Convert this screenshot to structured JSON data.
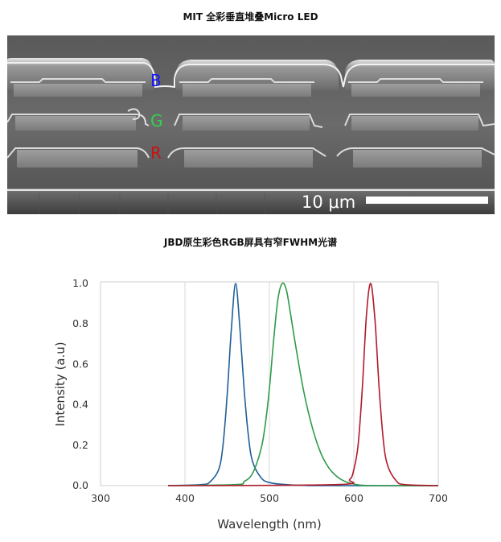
{
  "figure1": {
    "title": "MIT 全彩垂直堆叠Micro LED",
    "labels": {
      "b": "B",
      "g": "G",
      "r": "R"
    },
    "label_colors": {
      "b": "#1a1aff",
      "g": "#33d04d",
      "r": "#cc1111"
    },
    "scale_bar_text": "10 μm"
  },
  "figure2": {
    "title": "JBD原生彩色RGB屏具有窄FWHM光谱"
  },
  "chart_data": {
    "type": "line",
    "xlabel": "Wavelength (nm)",
    "ylabel": "Intensity (a.u)",
    "xlim": [
      300,
      700
    ],
    "ylim": [
      0,
      1.0
    ],
    "x_ticks": [
      "300",
      "400",
      "500",
      "600",
      "700"
    ],
    "y_ticks": [
      "0.0",
      "0.2",
      "0.4",
      "0.6",
      "0.8",
      "1.0"
    ],
    "grid": true,
    "legend": "none",
    "series": [
      {
        "color": "#1f5f96",
        "x": [
          380,
          420,
          430,
          440,
          445,
          450,
          455,
          460,
          465,
          470,
          475,
          480,
          490,
          500,
          520,
          560,
          700
        ],
        "y": [
          0,
          0.005,
          0.02,
          0.08,
          0.2,
          0.45,
          0.78,
          1.0,
          0.78,
          0.48,
          0.25,
          0.12,
          0.04,
          0.015,
          0.005,
          0,
          0
        ]
      },
      {
        "color": "#2f9a4a",
        "x": [
          380,
          460,
          470,
          480,
          490,
          495,
          500,
          505,
          510,
          515,
          520,
          525,
          530,
          540,
          550,
          560,
          570,
          580,
          590,
          600,
          620,
          700
        ],
        "y": [
          0,
          0.005,
          0.02,
          0.06,
          0.18,
          0.3,
          0.48,
          0.72,
          0.92,
          1.0,
          0.97,
          0.85,
          0.72,
          0.48,
          0.3,
          0.17,
          0.09,
          0.045,
          0.02,
          0.008,
          0,
          0
        ]
      },
      {
        "color": "#b01a2a",
        "x": [
          380,
          580,
          595,
          600,
          605,
          610,
          615,
          620,
          625,
          630,
          635,
          640,
          650,
          660,
          700
        ],
        "y": [
          0,
          0.005,
          0.03,
          0.08,
          0.2,
          0.48,
          0.85,
          1.0,
          0.82,
          0.48,
          0.22,
          0.1,
          0.025,
          0.005,
          0
        ]
      }
    ]
  }
}
